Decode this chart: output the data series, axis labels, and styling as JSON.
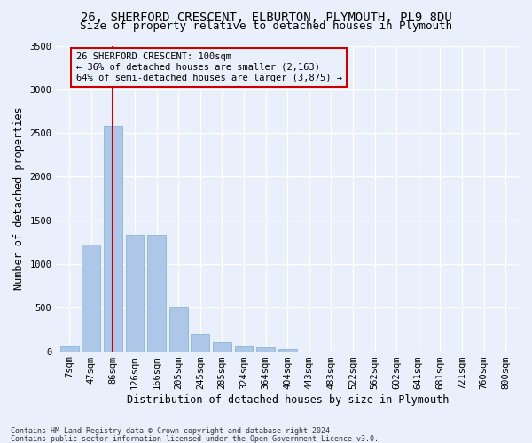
{
  "title1": "26, SHERFORD CRESCENT, ELBURTON, PLYMOUTH, PL9 8DU",
  "title2": "Size of property relative to detached houses in Plymouth",
  "xlabel": "Distribution of detached houses by size in Plymouth",
  "ylabel": "Number of detached properties",
  "bar_color": "#aec6e8",
  "bar_edge_color": "#7aafd4",
  "categories": [
    "7sqm",
    "47sqm",
    "86sqm",
    "126sqm",
    "166sqm",
    "205sqm",
    "245sqm",
    "285sqm",
    "324sqm",
    "364sqm",
    "404sqm",
    "443sqm",
    "483sqm",
    "522sqm",
    "562sqm",
    "602sqm",
    "641sqm",
    "681sqm",
    "721sqm",
    "760sqm",
    "800sqm"
  ],
  "values": [
    55,
    1220,
    2580,
    1335,
    1335,
    500,
    195,
    105,
    55,
    50,
    30,
    0,
    0,
    0,
    0,
    0,
    0,
    0,
    0,
    0,
    0
  ],
  "ylim": [
    0,
    3500
  ],
  "yticks": [
    0,
    500,
    1000,
    1500,
    2000,
    2500,
    3000,
    3500
  ],
  "vline_x": 2.0,
  "vline_color": "#cc0000",
  "annotation_text": "26 SHERFORD CRESCENT: 100sqm\n← 36% of detached houses are smaller (2,163)\n64% of semi-detached houses are larger (3,875) →",
  "footer1": "Contains HM Land Registry data © Crown copyright and database right 2024.",
  "footer2": "Contains public sector information licensed under the Open Government Licence v3.0.",
  "bg_color": "#eaf0fb",
  "grid_color": "#ffffff",
  "title_fontsize": 10,
  "subtitle_fontsize": 9,
  "axis_label_fontsize": 8.5,
  "tick_fontsize": 7.5,
  "annotation_fontsize": 7.5
}
